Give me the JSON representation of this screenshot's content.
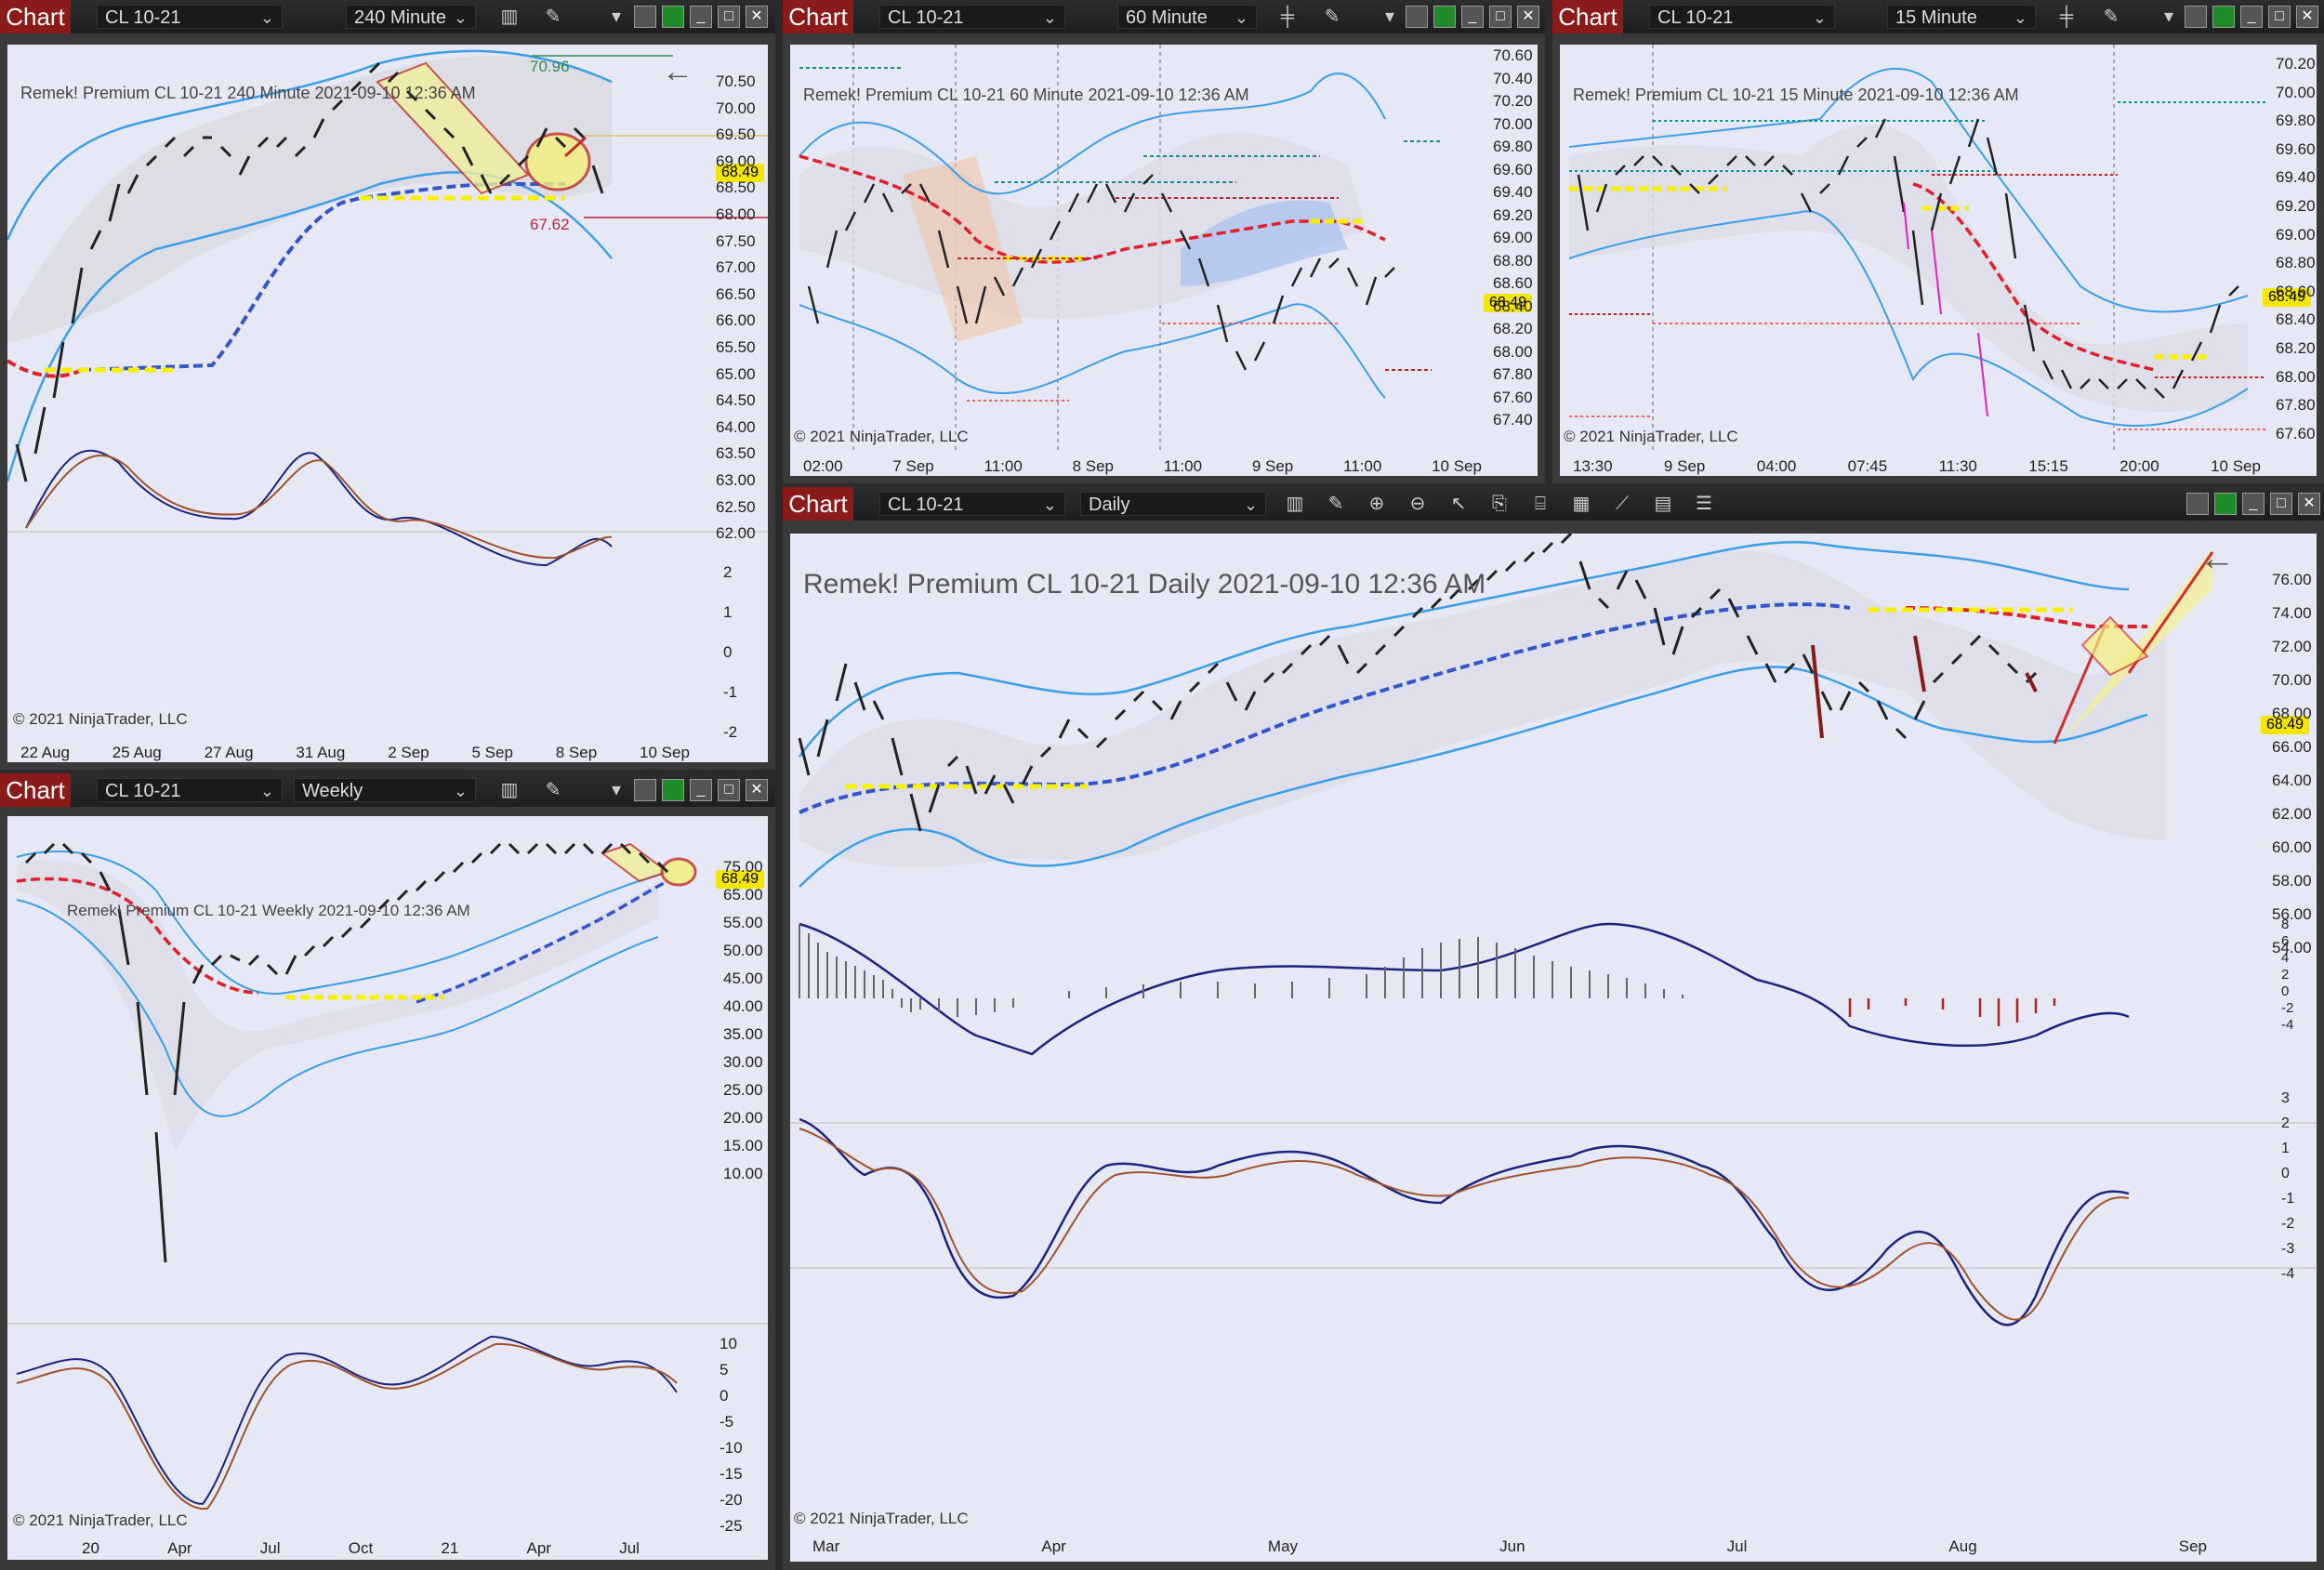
{
  "common": {
    "chart_tab": "Chart",
    "instrument": "CL 10-21",
    "copyright": "© 2021 NinjaTrader, LLC",
    "last_price": "68.49"
  },
  "windows": {
    "w240": {
      "interval": "240 Minute",
      "title": "Remek!  Premium  CL 10-21  240 Minute  2021-09-10 12:36 AM",
      "prices": [
        "70.50",
        "70.00",
        "69.50",
        "69.00",
        "68.50",
        "68.00",
        "67.50",
        "67.00",
        "66.50",
        "66.00",
        "65.50",
        "65.00",
        "64.50",
        "64.00",
        "63.50",
        "63.00",
        "62.50",
        "62.00"
      ],
      "osc": [
        "2",
        "1",
        "0",
        "-1",
        "-2"
      ],
      "dates": [
        "22 Aug",
        "25 Aug",
        "27 Aug",
        "31 Aug",
        "2 Sep",
        "5 Sep",
        "8 Sep",
        "10 Sep"
      ],
      "level_hi": "70.96",
      "level_lo": "67.62"
    },
    "w60": {
      "interval": "60 Minute",
      "title": "Remek!  Premium  CL 10-21  60 Minute  2021-09-10 12:36 AM",
      "prices": [
        "70.60",
        "70.40",
        "70.20",
        "70.00",
        "69.80",
        "69.60",
        "69.40",
        "69.20",
        "69.00",
        "68.80",
        "68.60",
        "68.40",
        "68.20",
        "68.00",
        "67.80",
        "67.60",
        "67.40"
      ],
      "dates": [
        "02:00",
        "7 Sep",
        "11:00",
        "8 Sep",
        "11:00",
        "9 Sep",
        "11:00",
        "10 Sep"
      ]
    },
    "w15": {
      "interval": "15 Minute",
      "title": "Remek!  Premium  CL 10-21  15 Minute  2021-09-10 12:36 AM",
      "prices": [
        "70.20",
        "70.00",
        "69.80",
        "69.60",
        "69.40",
        "69.20",
        "69.00",
        "68.80",
        "68.60",
        "68.40",
        "68.20",
        "68.00",
        "67.80",
        "67.60"
      ],
      "dates": [
        "13:30",
        "9 Sep",
        "04:00",
        "07:45",
        "11:30",
        "15:15",
        "20:00",
        "10 Sep"
      ]
    },
    "wweek": {
      "interval": "Weekly",
      "title": "Remek!  Premium  CL 10-21  Weekly  2021-09-10 12:36 AM",
      "prices": [
        "75.00",
        "65.00",
        "55.00",
        "50.00",
        "45.00",
        "40.00",
        "35.00",
        "30.00",
        "25.00",
        "20.00",
        "15.00",
        "10.00"
      ],
      "osc": [
        "10",
        "5",
        "0",
        "-5",
        "-10",
        "-15",
        "-20",
        "-25"
      ],
      "dates": [
        "20",
        "Apr",
        "Jul",
        "Oct",
        "21",
        "Apr",
        "Jul"
      ]
    },
    "wday": {
      "interval": "Daily",
      "title": "Remek!  Premium  CL 10-21  Daily  2021-09-10 12:36 AM",
      "prices": [
        "76.00",
        "74.00",
        "72.00",
        "70.00",
        "68.00",
        "66.00",
        "64.00",
        "62.00",
        "60.00",
        "58.00",
        "56.00",
        "54.00"
      ],
      "hist": [
        "8",
        "6",
        "4",
        "2",
        "0",
        "-2",
        "-4"
      ],
      "osc": [
        "3",
        "2",
        "1",
        "0",
        "-1",
        "-2",
        "-3",
        "-4"
      ],
      "dates": [
        "Mar",
        "Apr",
        "May",
        "Jun",
        "Jul",
        "Aug",
        "Sep"
      ]
    }
  },
  "colors": {
    "panel_bg": "#e7e8f5",
    "bull": "#1d7a33",
    "bear": "#8a1a1a",
    "band": "#3a9fe8",
    "mid_red": "#e0202a",
    "mid_blue": "#3355cc",
    "yellow": "#f7f000"
  }
}
